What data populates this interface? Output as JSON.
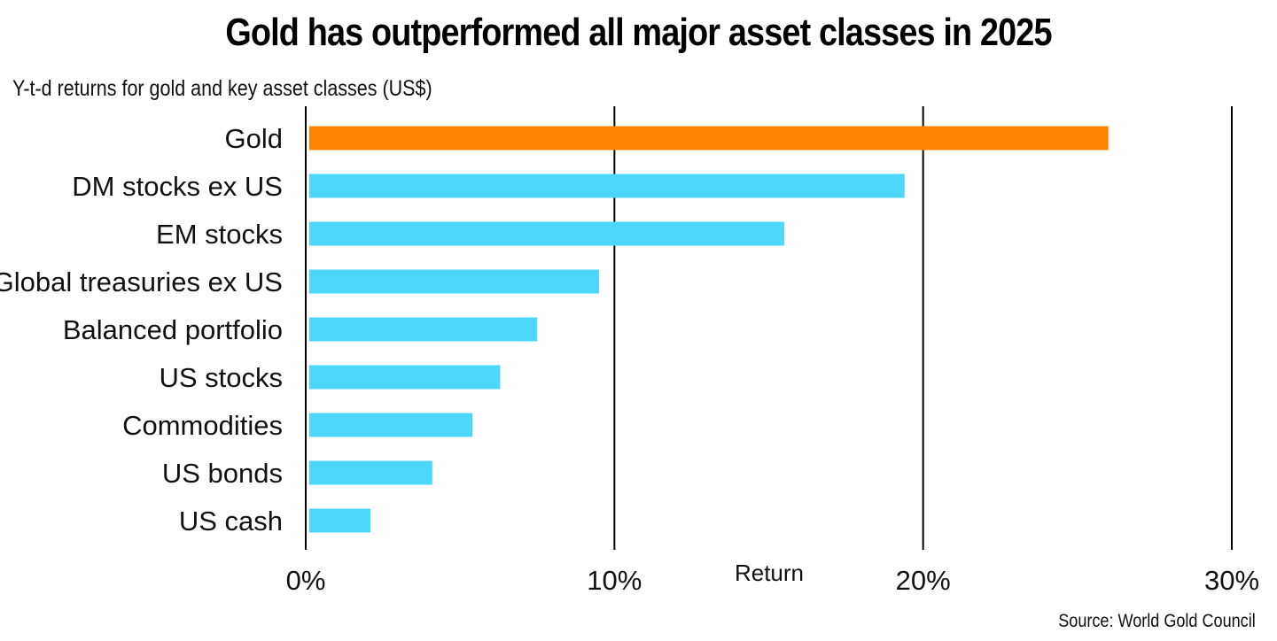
{
  "chart_data": {
    "type": "bar",
    "orientation": "horizontal",
    "title": "Gold has outperformed all major asset classes in 2025",
    "subtitle": "Y-t-d returns for gold and key asset classes (US$)",
    "source": "Source: World Gold Council",
    "xlabel": "Return",
    "ylabel": "",
    "xlim": [
      0,
      30
    ],
    "x_ticks": [
      0,
      10,
      20,
      30
    ],
    "x_tick_labels": [
      "0%",
      "10%",
      "20%",
      "30%"
    ],
    "grid": true,
    "categories": [
      "Gold",
      "DM stocks ex US",
      "EM stocks",
      "Global treasuries ex US",
      "Balanced portfolio",
      "US stocks",
      "Commodities",
      "US bonds",
      "US cash"
    ],
    "values": [
      26.0,
      19.4,
      15.5,
      9.5,
      7.5,
      6.3,
      5.4,
      4.1,
      2.1
    ],
    "colors": {
      "highlight": "#ff8200",
      "default": "#4dd7fb",
      "grid": "#000000"
    },
    "highlight_category": "Gold"
  }
}
